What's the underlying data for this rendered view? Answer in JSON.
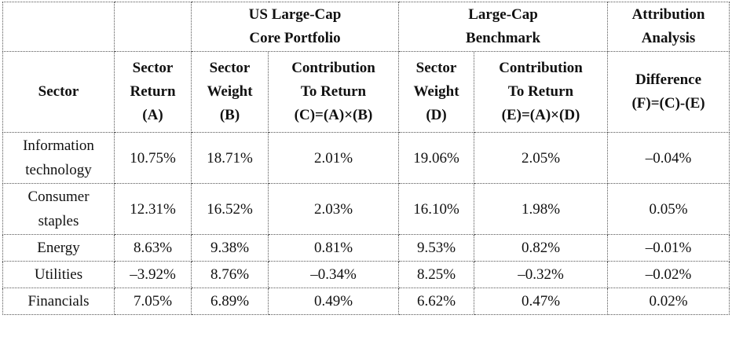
{
  "table": {
    "group_headers": {
      "portfolio": [
        "US Large-Cap",
        "Core Portfolio"
      ],
      "benchmark": [
        "Large-Cap",
        "Benchmark"
      ],
      "attribution": [
        "Attribution",
        "Analysis"
      ]
    },
    "column_headers": {
      "sector": "Sector",
      "sector_return": [
        "Sector",
        "Return",
        "(A)"
      ],
      "port_weight": [
        "Sector",
        "Weight",
        "(B)"
      ],
      "port_contribution": [
        "Contribution",
        "To Return",
        "(C)=(A)×(B)"
      ],
      "bench_weight": [
        "Sector",
        "Weight",
        "(D)"
      ],
      "bench_contribution": [
        "Contribution",
        "To Return",
        "(E)=(A)×(D)"
      ],
      "difference": [
        "Difference",
        "(F)=(C)-(E)"
      ]
    },
    "rows": [
      {
        "sector": [
          "Information",
          "technology"
        ],
        "a": "10.75%",
        "b": "18.71%",
        "c": "2.01%",
        "d": "19.06%",
        "e": "2.05%",
        "f": "–0.04%"
      },
      {
        "sector": [
          "Consumer",
          "staples"
        ],
        "a": "12.31%",
        "b": "16.52%",
        "c": "2.03%",
        "d": "16.10%",
        "e": "1.98%",
        "f": "0.05%"
      },
      {
        "sector": [
          "Energy"
        ],
        "a": "8.63%",
        "b": "9.38%",
        "c": "0.81%",
        "d": "9.53%",
        "e": "0.82%",
        "f": "–0.01%"
      },
      {
        "sector": [
          "Utilities"
        ],
        "a": "–3.92%",
        "b": "8.76%",
        "c": "–0.34%",
        "d": "8.25%",
        "e": "–0.32%",
        "f": "–0.02%"
      },
      {
        "sector": [
          "Financials"
        ],
        "a": "7.05%",
        "b": "6.89%",
        "c": "0.49%",
        "d": "6.62%",
        "e": "0.47%",
        "f": "0.02%"
      }
    ]
  }
}
